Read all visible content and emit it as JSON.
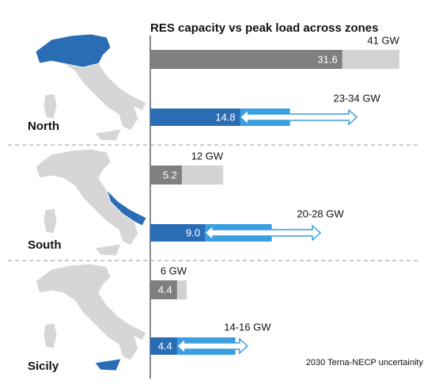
{
  "chart_data": {
    "type": "bar",
    "title": "RES capacity vs peak load across zones",
    "note": "2030 Terna-NECP uncertainity",
    "categories": [
      "North",
      "South",
      "Sicily"
    ],
    "xlim": [
      0,
      45
    ],
    "peak_load": {
      "values": [
        31.6,
        5.2,
        4.4
      ],
      "totals": [
        41,
        12,
        6
      ],
      "total_labels": [
        "41 GW",
        "12 GW",
        "6 GW"
      ],
      "color": "#7f7f7f",
      "total_color": "#d2d2d2"
    },
    "res_capacity": {
      "values": [
        14.8,
        9.0,
        4.4
      ],
      "value_labels": [
        "14.8",
        "9.0",
        "4.4"
      ],
      "range_low": [
        23,
        20,
        14
      ],
      "range_high": [
        34,
        28,
        16
      ],
      "range_labels": [
        "23-34 GW",
        "20-28 GW",
        "14-16 GW"
      ],
      "color": "#2b6db5",
      "range_color": "#3a9ee0"
    }
  }
}
